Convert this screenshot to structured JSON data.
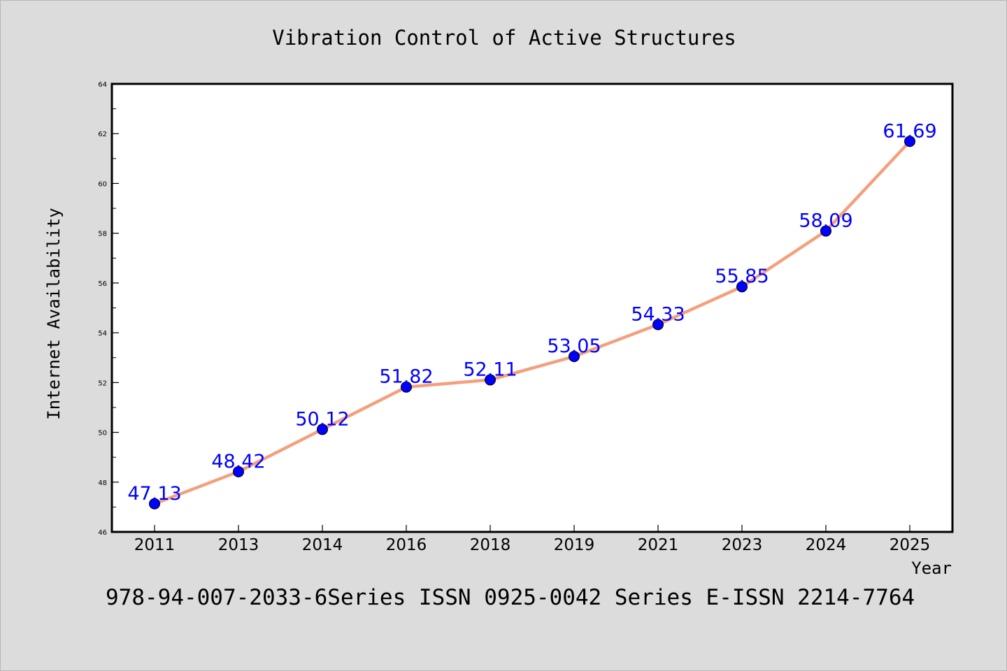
{
  "chart_data": {
    "type": "line",
    "title": "Vibration Control of Active Structures",
    "xlabel": "Year",
    "ylabel": "Internet Availability",
    "categories": [
      "2011",
      "2013",
      "2014",
      "2016",
      "2018",
      "2019",
      "2021",
      "2023",
      "2024",
      "2025"
    ],
    "series": [
      {
        "values": [
          47.13,
          48.42,
          50.12,
          51.82,
          52.11,
          53.05,
          54.33,
          55.85,
          58.09,
          61.69
        ],
        "data_labels": [
          "47.13",
          "48.42",
          "50.12",
          "51.82",
          "52.11",
          "53.05",
          "54.33",
          "55.85",
          "58.09",
          "61.69"
        ]
      }
    ],
    "ylim": [
      46,
      64
    ],
    "yticks": [
      "46",
      "48",
      "50",
      "52",
      "54",
      "56",
      "58",
      "60",
      "62",
      "64"
    ],
    "grid": false,
    "legend": "none",
    "footer": "978-94-007-2033-6Series ISSN 0925-0042 Series E-ISSN 2214-7764",
    "colors": {
      "background": "#dcdcdc",
      "plot_background": "#ffffff",
      "line": "#f4a07e",
      "marker": "#0000ff",
      "data_label": "#0000ff",
      "axis": "#000000"
    }
  }
}
